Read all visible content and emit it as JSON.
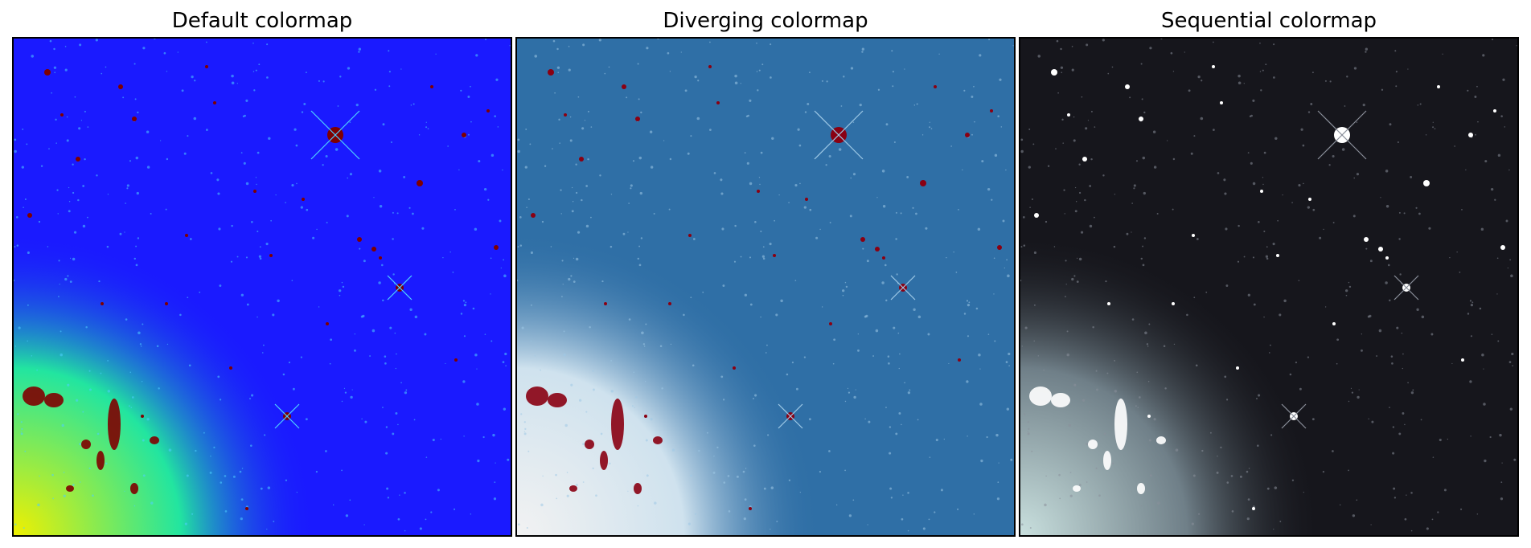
{
  "panels": [
    {
      "title": "Default colormap",
      "colors": {
        "background": "#1a1aff",
        "glow": "#22e5a0",
        "glow_core": "#f0f000",
        "bright": "#7f0000",
        "speckle": "#4fd0ff"
      }
    },
    {
      "title": "Diverging colormap",
      "colors": {
        "background": "#2f6fa6",
        "glow": "#cfe2ee",
        "glow_core": "#f2f2f2",
        "bright": "#8a0012",
        "speckle": "#9ec9e6"
      }
    },
    {
      "title": "Sequential colormap",
      "colors": {
        "background": "#16161c",
        "glow": "#6f7f88",
        "glow_core": "#c9e0de",
        "bright": "#ffffff",
        "speckle": "#8a8f9a"
      }
    }
  ]
}
